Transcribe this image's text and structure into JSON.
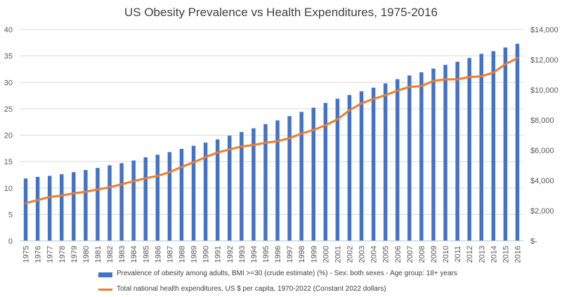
{
  "chart_data": {
    "type": "bar",
    "title": "US Obesity Prevalence vs Health Expenditures, 1975-2016",
    "categories": [
      "1975",
      "1976",
      "1977",
      "1978",
      "1979",
      "1980",
      "1981",
      "1982",
      "1983",
      "1984",
      "1985",
      "1986",
      "1987",
      "1988",
      "1989",
      "1990",
      "1991",
      "1992",
      "1993",
      "1994",
      "1995",
      "1996",
      "1997",
      "1998",
      "1999",
      "2000",
      "2001",
      "2002",
      "2003",
      "2004",
      "2005",
      "2006",
      "2007",
      "2008",
      "2009",
      "2010",
      "2011",
      "2012",
      "2013",
      "2014",
      "2015",
      "2016"
    ],
    "series": [
      {
        "name": "Prevalence of obesity among adults, BMI >=30 (crude estimate) (%) - Sex: both sexes - Age group: 18+  years",
        "type": "bar",
        "axis": "left",
        "color": "#4472C4",
        "values": [
          11.8,
          12.1,
          12.3,
          12.6,
          13.0,
          13.4,
          13.8,
          14.3,
          14.7,
          15.2,
          15.8,
          16.3,
          16.8,
          17.4,
          18.0,
          18.6,
          19.2,
          19.9,
          20.6,
          21.3,
          22.1,
          22.8,
          23.6,
          24.4,
          25.2,
          26.1,
          26.9,
          27.6,
          28.3,
          29.0,
          29.8,
          30.6,
          31.3,
          31.9,
          32.6,
          33.3,
          33.9,
          34.6,
          35.4,
          35.9,
          36.6,
          37.3
        ]
      },
      {
        "name": "Total national health expenditures, US $ per capita, 1970-2022 (Constant 2022 dollars)",
        "type": "line",
        "axis": "right",
        "color": "#ED7D31",
        "values": [
          2500,
          2700,
          2900,
          3000,
          3150,
          3250,
          3400,
          3550,
          3750,
          3950,
          4150,
          4300,
          4550,
          4900,
          5200,
          5550,
          5850,
          6050,
          6250,
          6350,
          6500,
          6600,
          6800,
          7100,
          7350,
          7650,
          8050,
          8650,
          9100,
          9400,
          9650,
          9950,
          10200,
          10250,
          10600,
          10700,
          10700,
          10850,
          10900,
          11150,
          11700,
          12100
        ]
      }
    ],
    "y_left": {
      "ylim": [
        0,
        40
      ],
      "ticks": [
        "0",
        "5",
        "10",
        "15",
        "20",
        "25",
        "30",
        "35",
        "40"
      ]
    },
    "y_right": {
      "ylim": [
        0,
        14000
      ],
      "ticks": [
        "$-",
        "$2,000",
        "$4,000",
        "$6,000",
        "$8,000",
        "$10,000",
        "$12,000",
        "$14,000"
      ]
    },
    "grid": true,
    "legend_position": "bottom"
  }
}
